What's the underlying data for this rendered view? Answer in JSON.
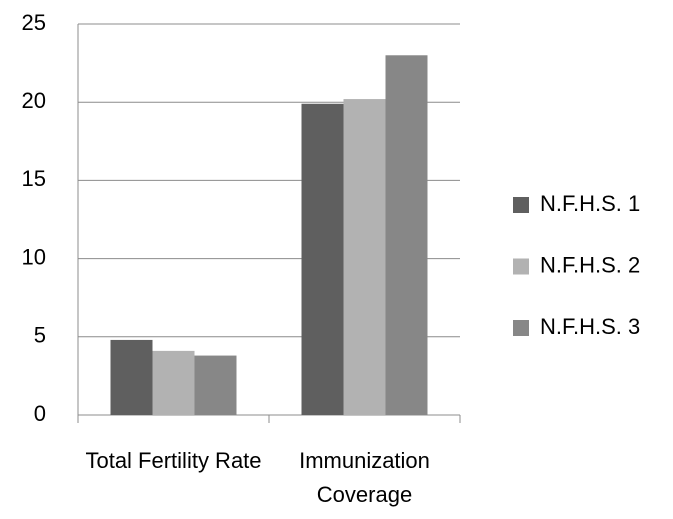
{
  "chart_data": {
    "type": "bar",
    "categories": [
      "Total Fertility Rate",
      "Immunization Coverage"
    ],
    "series": [
      {
        "name": "N.F.H.S. 1",
        "color": "#5f5f5f",
        "values": [
          4.8,
          19.9
        ]
      },
      {
        "name": "N.F.H.S. 2",
        "color": "#b2b2b2",
        "values": [
          4.1,
          20.2
        ]
      },
      {
        "name": "N.F.H.S. 3",
        "color": "#878787",
        "values": [
          3.8,
          23.0
        ]
      }
    ],
    "ylim": [
      0,
      25
    ],
    "yticks": [
      0,
      5,
      10,
      15,
      20,
      25
    ],
    "grid": true,
    "legend": "right"
  }
}
